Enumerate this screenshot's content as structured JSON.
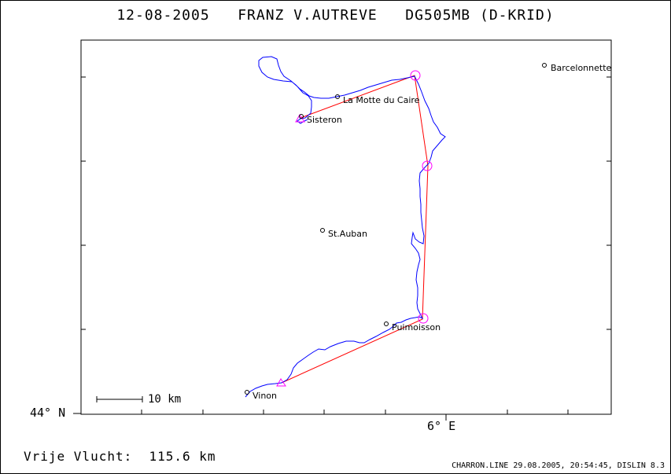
{
  "header": {
    "date": "12-08-2005",
    "pilot": "FRANZ V.AUTREVE",
    "glider": "DG505MB (D-KRID)"
  },
  "axes": {
    "lat_label": "44° N",
    "lon_label": "6° E"
  },
  "scale_bar": {
    "label": "10 km"
  },
  "places": [
    {
      "name": "Barcelonnette"
    },
    {
      "name": "La Motte du Caire"
    },
    {
      "name": "Sisteron"
    },
    {
      "name": "St.Auban"
    },
    {
      "name": "Puimoisson"
    },
    {
      "name": "Vinon"
    }
  ],
  "summary": {
    "label": "Vrije Vlucht:",
    "value": "115.6 km"
  },
  "footer": {
    "text": "CHARRON.LINE 29.08.2005, 20:54:45, DISLIN 8.3"
  },
  "colors": {
    "track": "#0000ff",
    "task_line": "#ff0000",
    "turnpoint": "#ff00ff",
    "frame": "#000000"
  }
}
